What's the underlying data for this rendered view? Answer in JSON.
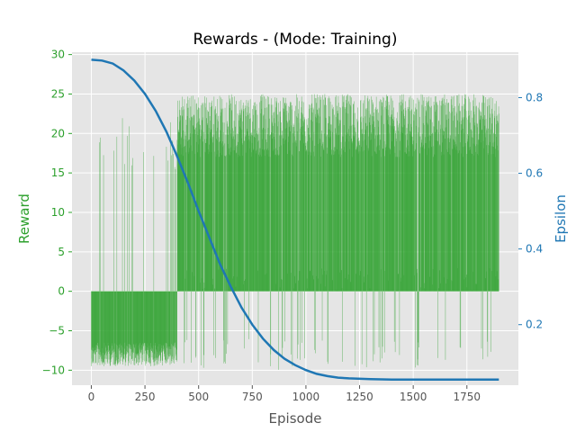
{
  "chart_data": {
    "type": "line",
    "title": "Rewards - (Mode: Training)",
    "xlabel": "Episode",
    "ylabel_left": "Reward",
    "ylabel_right": "Epsilon",
    "xlim": [
      -90,
      1990
    ],
    "ylim_left": [
      -11.9,
      30.3
    ],
    "ylim_right": [
      0.04,
      0.92
    ],
    "xticks": [
      0,
      250,
      500,
      750,
      1000,
      1250,
      1500,
      1750
    ],
    "yticks_left": [
      -10,
      -5,
      0,
      5,
      10,
      15,
      20,
      25,
      30
    ],
    "yticks_right": [
      0.2,
      0.4,
      0.6,
      0.8
    ],
    "grid": true,
    "colors": {
      "reward": "#2ca02c",
      "epsilon": "#1f77b4",
      "plot_background": "#e5e5e5",
      "grid": "#ffffff",
      "tick_label": "#555555"
    },
    "series": [
      {
        "axis": "left",
        "style": "bars",
        "x_range": [
          0,
          1899
        ],
        "values_summary": "Per-episode reward; episodes 0-400 mostly between -10 and 0 with sparse spikes to ~21; episodes 400-1899 mostly around 20-25 with occasional dips to -10"
      },
      {
        "axis": "right",
        "style": "line",
        "points": [
          [
            0,
            0.9
          ],
          [
            50,
            0.898
          ],
          [
            100,
            0.89
          ],
          [
            150,
            0.872
          ],
          [
            200,
            0.845
          ],
          [
            250,
            0.81
          ],
          [
            300,
            0.765
          ],
          [
            350,
            0.71
          ],
          [
            400,
            0.645
          ],
          [
            450,
            0.575
          ],
          [
            500,
            0.5
          ],
          [
            550,
            0.43
          ],
          [
            600,
            0.36
          ],
          [
            650,
            0.3
          ],
          [
            700,
            0.245
          ],
          [
            750,
            0.2
          ],
          [
            800,
            0.163
          ],
          [
            850,
            0.133
          ],
          [
            900,
            0.11
          ],
          [
            950,
            0.093
          ],
          [
            1000,
            0.08
          ],
          [
            1050,
            0.07
          ],
          [
            1100,
            0.064
          ],
          [
            1150,
            0.06
          ],
          [
            1200,
            0.058
          ],
          [
            1300,
            0.056
          ],
          [
            1400,
            0.055
          ],
          [
            1500,
            0.055
          ],
          [
            1600,
            0.055
          ],
          [
            1700,
            0.055
          ],
          [
            1800,
            0.055
          ],
          [
            1899,
            0.055
          ]
        ]
      }
    ]
  }
}
